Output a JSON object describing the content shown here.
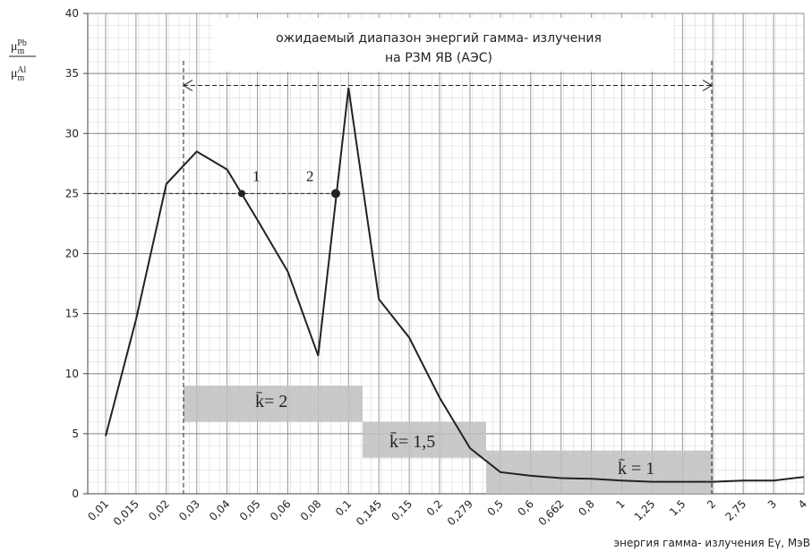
{
  "chart_data": {
    "type": "line",
    "categories": [
      "0,01",
      "0,015",
      "0,02",
      "0,03",
      "0,04",
      "0,05",
      "0,06",
      "0,08",
      "0,1",
      "0,145",
      "0,15",
      "0,2",
      "0,279",
      "0,5",
      "0,6",
      "0,662",
      "0,8",
      "1",
      "1,25",
      "1,5",
      "2",
      "2,75",
      "3",
      "4"
    ],
    "values": [
      4.8,
      14.5,
      25.8,
      28.5,
      27,
      22.8,
      18.5,
      11.5,
      33.8,
      16.2,
      13,
      8,
      3.8,
      1.8,
      1.5,
      1.3,
      1.25,
      1.1,
      1.0,
      1.0,
      1.0,
      1.1,
      1.1,
      1.4
    ],
    "color": "#222222",
    "ylim": [
      0,
      40
    ],
    "yticks": [
      0,
      5,
      10,
      15,
      20,
      25,
      30,
      35,
      40
    ],
    "grid": true,
    "ylabel": {
      "num": [
        "μ",
        "m",
        "Pb"
      ],
      "den": [
        "μ",
        "m",
        "Al"
      ]
    },
    "xlabel": "энергия гамма- излучения Eγ, МэВ",
    "annotation": {
      "lines": [
        "ожидаемый диапазон энергий гамма- излучения",
        "на РЗМ ЯВ (АЭС)"
      ],
      "arrow_y": 34
    },
    "markers": [
      {
        "label": "1",
        "y": 25
      },
      {
        "label": "2",
        "y": 25
      }
    ],
    "bands": [
      {
        "label": "k̄= 2",
        "y": [
          6,
          9
        ]
      },
      {
        "label": "k̄= 1,5",
        "y": [
          3,
          6
        ]
      },
      {
        "label": "k̄ = 1",
        "y": [
          0,
          3.6
        ]
      }
    ]
  }
}
